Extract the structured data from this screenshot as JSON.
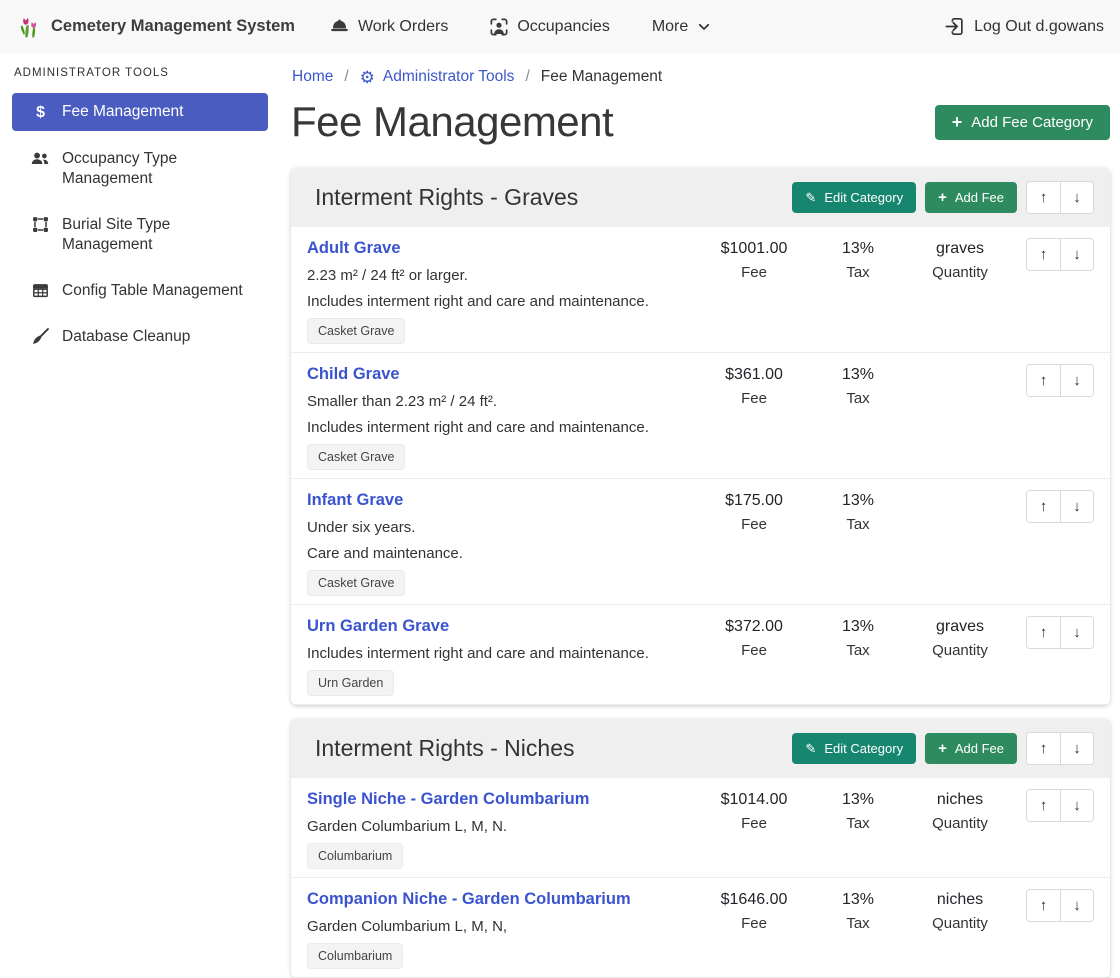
{
  "navbar": {
    "brand": "Cemetery Management System",
    "items": [
      {
        "label": "Work Orders",
        "icon": "hardhat-icon"
      },
      {
        "label": "Occupancies",
        "icon": "person-badge-icon"
      },
      {
        "label": "More",
        "icon": "chevron-down-icon"
      }
    ],
    "logout_label": "Log Out d.gowans",
    "logout_icon": "logout-icon"
  },
  "sidebar": {
    "header": "ADMINISTRATOR TOOLS",
    "items": [
      {
        "label": "Fee Management",
        "icon": "dollar-icon",
        "active": true
      },
      {
        "label": "Occupancy Type Management",
        "icon": "people-icon",
        "active": false
      },
      {
        "label": "Burial Site Type Management",
        "icon": "bounding-box-icon",
        "active": false
      },
      {
        "label": "Config Table Management",
        "icon": "table-icon",
        "active": false
      },
      {
        "label": "Database Cleanup",
        "icon": "broom-icon",
        "active": false
      }
    ]
  },
  "breadcrumb": {
    "home": "Home",
    "separator": "/",
    "admin_tools": "Administrator Tools",
    "current": "Fee Management"
  },
  "page": {
    "title": "Fee Management",
    "add_category_label": "Add Fee Category"
  },
  "category_actions": {
    "edit_label": "Edit Category",
    "add_fee_label": "Add Fee"
  },
  "labels": {
    "fee": "Fee",
    "tax": "Tax",
    "quantity": "Quantity"
  },
  "colors": {
    "accent_blue": "#4a5cc0",
    "link_blue": "#3a53cf",
    "teal_button": "#17866e",
    "green_button": "#2e8b5f",
    "navbar_bg": "#f8f8f8",
    "card_header_bg": "#efefef"
  },
  "categories": [
    {
      "title": "Interment Rights - Graves",
      "fees": [
        {
          "name": "Adult Grave",
          "descriptions": [
            "2.23 m² / 24 ft² or larger.",
            "Includes interment right and care and maintenance."
          ],
          "badge": "Casket Grave",
          "fee": "$1001.00",
          "tax": "13%",
          "quantity": "graves"
        },
        {
          "name": "Child Grave",
          "descriptions": [
            "Smaller than 2.23 m² / 24 ft².",
            "Includes interment right and care and maintenance."
          ],
          "badge": "Casket Grave",
          "fee": "$361.00",
          "tax": "13%",
          "quantity": ""
        },
        {
          "name": "Infant Grave",
          "descriptions": [
            "Under six years.",
            "Care and maintenance."
          ],
          "badge": "Casket Grave",
          "fee": "$175.00",
          "tax": "13%",
          "quantity": ""
        },
        {
          "name": "Urn Garden Grave",
          "descriptions": [
            "Includes interment right and care and maintenance."
          ],
          "badge": "Urn Garden",
          "fee": "$372.00",
          "tax": "13%",
          "quantity": "graves"
        }
      ]
    },
    {
      "title": "Interment Rights - Niches",
      "fees": [
        {
          "name": "Single Niche - Garden Columbarium",
          "descriptions": [
            "Garden Columbarium L, M, N."
          ],
          "badge": "Columbarium",
          "fee": "$1014.00",
          "tax": "13%",
          "quantity": "niches"
        },
        {
          "name": "Companion Niche - Garden Columbarium",
          "descriptions": [
            "Garden Columbarium L, M, N,"
          ],
          "badge": "Columbarium",
          "fee": "$1646.00",
          "tax": "13%",
          "quantity": "niches"
        }
      ]
    }
  ]
}
